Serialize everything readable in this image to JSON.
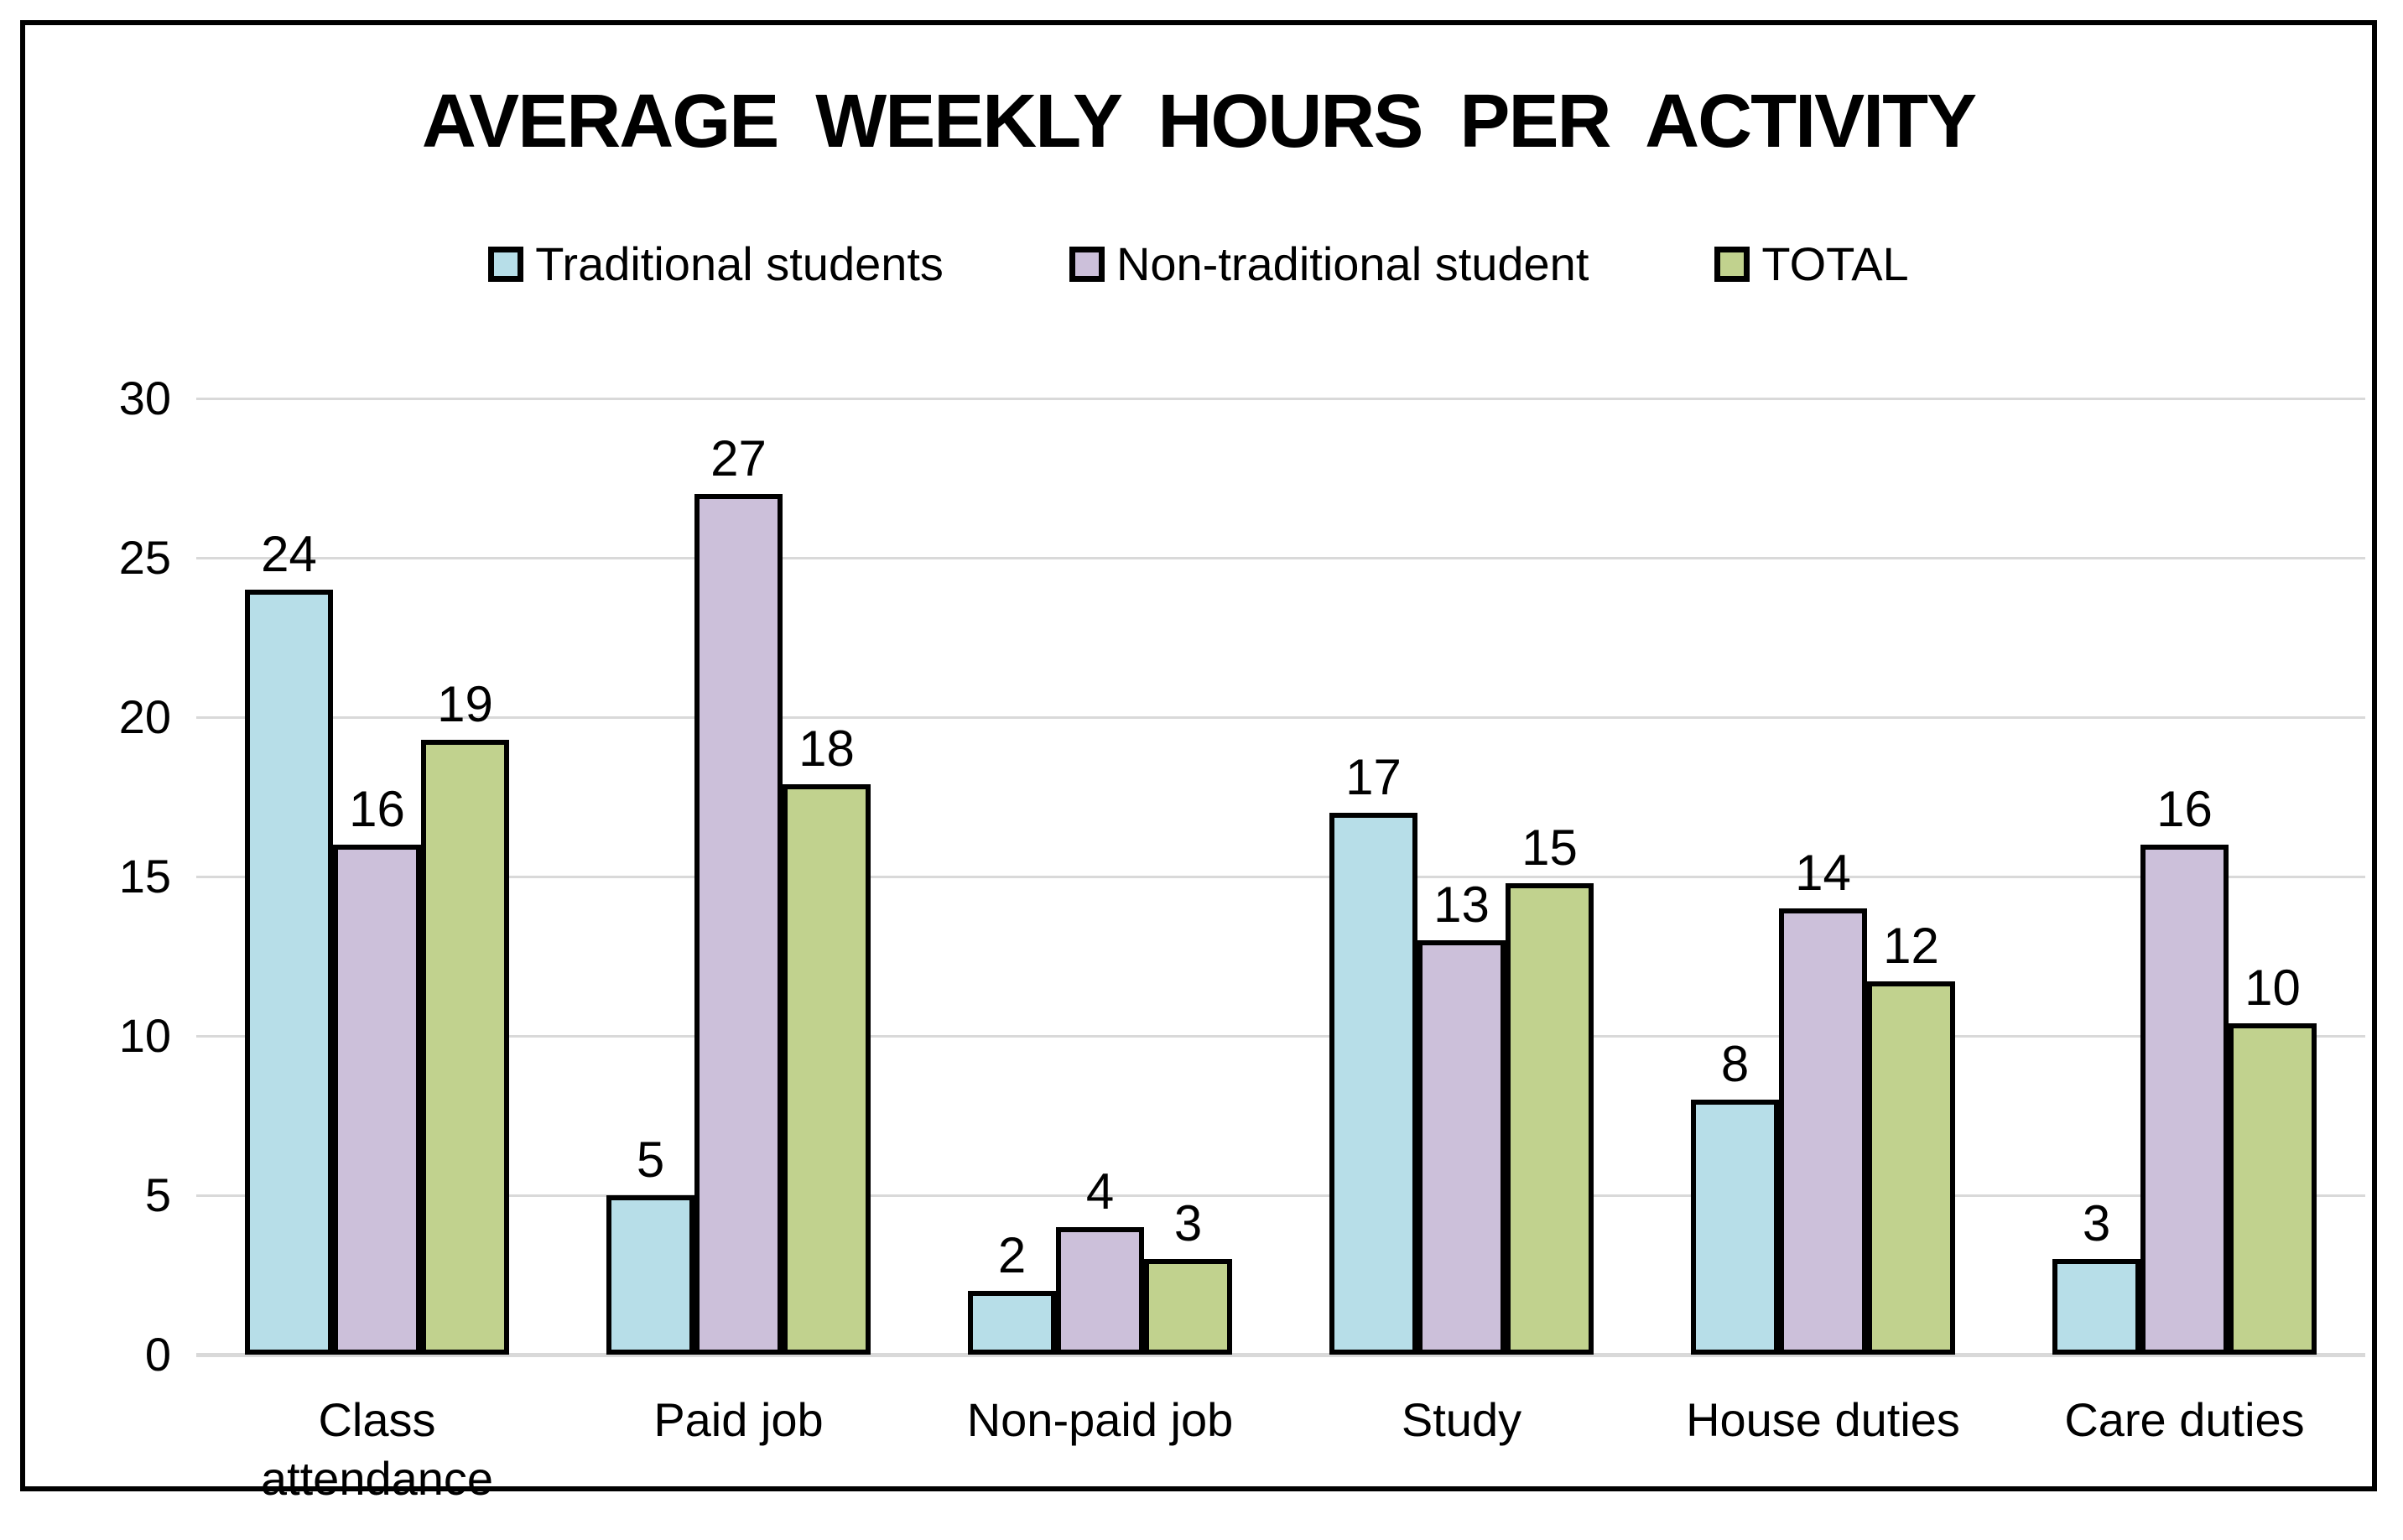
{
  "chart_data": {
    "type": "bar",
    "title": "AVERAGE WEEKLY HOURS PER ACTIVITY",
    "categories": [
      "Class attendance",
      "Paid job",
      "Non-paid job",
      "Study",
      "House duties",
      "Care duties"
    ],
    "series": [
      {
        "name": "Traditional students",
        "color": "#B7DEE8",
        "values": [
          24,
          5,
          2,
          17,
          8,
          3
        ],
        "bar_heights": [
          24,
          5,
          2,
          17,
          8,
          3
        ]
      },
      {
        "name": "Non-traditional student",
        "color": "#CCC0DA",
        "values": [
          16,
          27,
          4,
          13,
          14,
          16
        ],
        "bar_heights": [
          16,
          27,
          4,
          13,
          14,
          16
        ]
      },
      {
        "name": "TOTAL",
        "color": "#C1D28E",
        "values": [
          19,
          18,
          3,
          15,
          12,
          10
        ],
        "bar_heights": [
          19.3,
          17.9,
          3,
          14.8,
          11.7,
          10.4
        ]
      }
    ],
    "xlabel": "",
    "ylabel": "",
    "ylim": [
      0,
      30
    ],
    "y_ticks": [
      0,
      5,
      10,
      15,
      20,
      25,
      30
    ],
    "grid": true,
    "legend_position": "top",
    "data_labels": "outside-end",
    "styling": {
      "background": "#FFFFFF",
      "text_color": "#000000",
      "frame_border_color": "#000000",
      "bar_border_color": "#000000",
      "gridline_color": "#D9D9D9"
    }
  }
}
